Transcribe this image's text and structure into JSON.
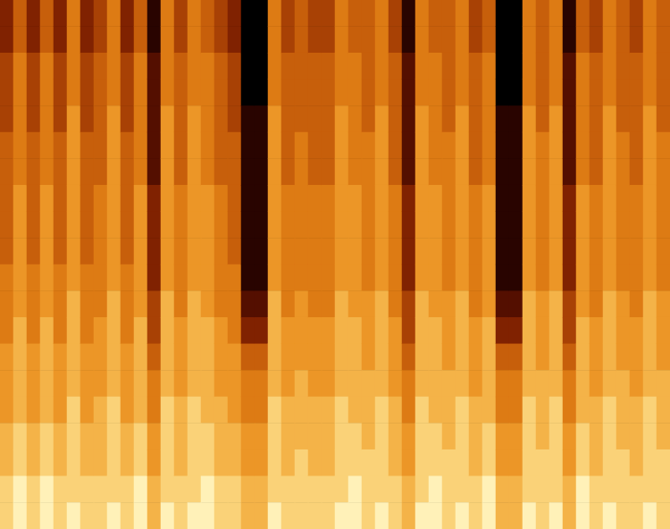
{
  "chart_data": {
    "type": "heatmap",
    "tick_labels": false,
    "grid": false,
    "value_range": [
      0,
      10
    ],
    "cells": [
      [
        3,
        3,
        4,
        4,
        4,
        5,
        5,
        5,
        5,
        5,
        6,
        6,
        6,
        7,
        7,
        7,
        8,
        8,
        9,
        9
      ],
      [
        5,
        5,
        6,
        6,
        6,
        6,
        6,
        7,
        7,
        7,
        7,
        7,
        8,
        8,
        8,
        8,
        9,
        9,
        10,
        10
      ],
      [
        3,
        3,
        4,
        4,
        4,
        5,
        5,
        5,
        5,
        5,
        6,
        6,
        6,
        7,
        7,
        7,
        8,
        8,
        9,
        9
      ],
      [
        5,
        5,
        6,
        6,
        6,
        6,
        6,
        7,
        7,
        7,
        7,
        7,
        8,
        8,
        8,
        8,
        9,
        9,
        10,
        10
      ],
      [
        3,
        3,
        4,
        4,
        4,
        5,
        5,
        5,
        5,
        5,
        6,
        6,
        6,
        7,
        7,
        7,
        8,
        8,
        9,
        9
      ],
      [
        6,
        6,
        6,
        6,
        7,
        7,
        7,
        7,
        7,
        7,
        7,
        8,
        8,
        8,
        8,
        9,
        9,
        9,
        9,
        10
      ],
      [
        3,
        3,
        4,
        4,
        4,
        5,
        5,
        5,
        5,
        5,
        6,
        6,
        6,
        7,
        7,
        7,
        8,
        8,
        9,
        9
      ],
      [
        4,
        4,
        5,
        5,
        5,
        5,
        5,
        6,
        6,
        6,
        6,
        6,
        7,
        7,
        7,
        8,
        8,
        8,
        9,
        9
      ],
      [
        6,
        6,
        6,
        6,
        7,
        7,
        7,
        7,
        7,
        7,
        7,
        8,
        8,
        8,
        8,
        9,
        9,
        9,
        9,
        10
      ],
      [
        3,
        3,
        4,
        4,
        4,
        5,
        5,
        5,
        5,
        5,
        6,
        6,
        6,
        7,
        7,
        7,
        8,
        8,
        9,
        9
      ],
      [
        5,
        5,
        6,
        6,
        6,
        6,
        6,
        7,
        7,
        7,
        7,
        7,
        8,
        8,
        8,
        8,
        9,
        9,
        10,
        10
      ],
      [
        1,
        1,
        2,
        2,
        2,
        2,
        2,
        3,
        3,
        3,
        3,
        4,
        4,
        5,
        6,
        6,
        7,
        7,
        8,
        8
      ],
      [
        6,
        6,
        6,
        6,
        7,
        7,
        7,
        7,
        7,
        7,
        7,
        8,
        8,
        8,
        8,
        9,
        9,
        9,
        9,
        10
      ],
      [
        4,
        4,
        5,
        5,
        5,
        5,
        5,
        6,
        6,
        6,
        6,
        6,
        7,
        7,
        7,
        8,
        8,
        8,
        9,
        9
      ],
      [
        6,
        6,
        6,
        6,
        7,
        7,
        7,
        7,
        7,
        7,
        7,
        8,
        8,
        8,
        8,
        9,
        9,
        9,
        9,
        10
      ],
      [
        5,
        5,
        6,
        6,
        6,
        6,
        6,
        7,
        7,
        7,
        7,
        7,
        8,
        8,
        8,
        8,
        9,
        9,
        10,
        10
      ],
      [
        4,
        4,
        5,
        5,
        5,
        5,
        5,
        6,
        6,
        6,
        6,
        6,
        7,
        7,
        7,
        8,
        8,
        8,
        9,
        9
      ],
      [
        3,
        3,
        4,
        4,
        4,
        5,
        5,
        5,
        5,
        5,
        6,
        6,
        6,
        7,
        7,
        7,
        8,
        8,
        9,
        9
      ],
      [
        0,
        0,
        0,
        0,
        1,
        1,
        1,
        1,
        1,
        1,
        1,
        2,
        3,
        5,
        6,
        6,
        7,
        7,
        8,
        8
      ],
      [
        0,
        0,
        0,
        0,
        1,
        1,
        1,
        1,
        1,
        1,
        1,
        2,
        3,
        5,
        6,
        6,
        7,
        7,
        8,
        8
      ],
      [
        6,
        6,
        6,
        6,
        7,
        7,
        7,
        7,
        7,
        7,
        7,
        8,
        8,
        8,
        8,
        9,
        9,
        9,
        9,
        10
      ],
      [
        4,
        4,
        5,
        5,
        5,
        5,
        5,
        6,
        6,
        6,
        6,
        6,
        7,
        7,
        7,
        8,
        8,
        8,
        9,
        9
      ],
      [
        5,
        5,
        5,
        5,
        5,
        6,
        6,
        6,
        6,
        6,
        6,
        7,
        7,
        7,
        8,
        8,
        8,
        9,
        9,
        9
      ],
      [
        4,
        4,
        5,
        5,
        5,
        5,
        5,
        6,
        6,
        6,
        6,
        6,
        7,
        7,
        7,
        8,
        8,
        8,
        9,
        9
      ],
      [
        4,
        4,
        5,
        5,
        5,
        5,
        5,
        6,
        6,
        6,
        6,
        6,
        7,
        7,
        7,
        8,
        8,
        8,
        9,
        9
      ],
      [
        6,
        6,
        6,
        6,
        7,
        7,
        7,
        7,
        7,
        7,
        7,
        8,
        8,
        8,
        8,
        9,
        9,
        9,
        9,
        10
      ],
      [
        5,
        5,
        6,
        6,
        6,
        6,
        6,
        7,
        7,
        7,
        7,
        7,
        8,
        8,
        8,
        8,
        9,
        9,
        10,
        10
      ],
      [
        5,
        5,
        5,
        5,
        5,
        6,
        6,
        6,
        6,
        6,
        6,
        7,
        7,
        7,
        8,
        8,
        8,
        9,
        9,
        9
      ],
      [
        6,
        6,
        6,
        6,
        7,
        7,
        7,
        7,
        7,
        7,
        7,
        8,
        8,
        8,
        8,
        9,
        9,
        9,
        9,
        10
      ],
      [
        4,
        4,
        5,
        5,
        5,
        5,
        5,
        6,
        6,
        6,
        6,
        6,
        7,
        7,
        7,
        8,
        8,
        8,
        9,
        9
      ],
      [
        1,
        1,
        2,
        2,
        2,
        2,
        2,
        3,
        3,
        3,
        3,
        4,
        4,
        5,
        6,
        6,
        7,
        7,
        8,
        8
      ],
      [
        6,
        6,
        6,
        6,
        7,
        7,
        7,
        7,
        7,
        7,
        7,
        8,
        8,
        8,
        8,
        9,
        9,
        9,
        9,
        10
      ],
      [
        5,
        5,
        6,
        6,
        6,
        6,
        6,
        7,
        7,
        7,
        7,
        7,
        8,
        8,
        8,
        8,
        9,
        9,
        10,
        10
      ],
      [
        5,
        5,
        5,
        5,
        5,
        6,
        6,
        6,
        6,
        6,
        6,
        7,
        7,
        7,
        8,
        8,
        8,
        9,
        9,
        9
      ],
      [
        6,
        6,
        6,
        6,
        7,
        7,
        7,
        7,
        7,
        7,
        7,
        8,
        8,
        8,
        8,
        9,
        9,
        9,
        9,
        10
      ],
      [
        4,
        4,
        5,
        5,
        5,
        5,
        5,
        6,
        6,
        6,
        6,
        6,
        7,
        7,
        7,
        8,
        8,
        8,
        9,
        9
      ],
      [
        5,
        5,
        6,
        6,
        6,
        6,
        6,
        7,
        7,
        7,
        7,
        7,
        8,
        8,
        8,
        8,
        9,
        9,
        10,
        10
      ],
      [
        0,
        0,
        0,
        0,
        1,
        1,
        1,
        1,
        1,
        1,
        1,
        2,
        3,
        5,
        6,
        6,
        7,
        7,
        8,
        8
      ],
      [
        0,
        0,
        0,
        0,
        1,
        1,
        1,
        1,
        1,
        1,
        1,
        2,
        3,
        5,
        6,
        6,
        7,
        7,
        8,
        8
      ],
      [
        6,
        6,
        6,
        6,
        7,
        7,
        7,
        7,
        7,
        7,
        7,
        8,
        8,
        8,
        8,
        9,
        9,
        9,
        9,
        10
      ],
      [
        5,
        5,
        5,
        5,
        5,
        6,
        6,
        6,
        6,
        6,
        6,
        7,
        7,
        7,
        8,
        8,
        8,
        9,
        9,
        9
      ],
      [
        6,
        6,
        6,
        6,
        7,
        7,
        7,
        7,
        7,
        7,
        7,
        8,
        8,
        8,
        8,
        9,
        9,
        9,
        9,
        10
      ],
      [
        1,
        1,
        2,
        2,
        2,
        2,
        2,
        3,
        3,
        3,
        3,
        4,
        4,
        5,
        6,
        6,
        7,
        7,
        8,
        8
      ],
      [
        5,
        5,
        6,
        6,
        6,
        6,
        6,
        7,
        7,
        7,
        7,
        7,
        8,
        8,
        8,
        8,
        9,
        9,
        10,
        10
      ],
      [
        4,
        4,
        5,
        5,
        5,
        5,
        5,
        6,
        6,
        6,
        6,
        6,
        7,
        7,
        7,
        8,
        8,
        8,
        9,
        9
      ],
      [
        6,
        6,
        6,
        6,
        7,
        7,
        7,
        7,
        7,
        7,
        7,
        8,
        8,
        8,
        8,
        9,
        9,
        9,
        9,
        10
      ],
      [
        5,
        5,
        5,
        5,
        5,
        6,
        6,
        6,
        6,
        6,
        6,
        7,
        7,
        7,
        8,
        8,
        8,
        9,
        9,
        9
      ],
      [
        4,
        4,
        5,
        5,
        5,
        5,
        5,
        6,
        6,
        6,
        6,
        6,
        7,
        7,
        7,
        8,
        8,
        8,
        9,
        9
      ],
      [
        6,
        6,
        6,
        6,
        7,
        7,
        7,
        7,
        7,
        7,
        7,
        8,
        8,
        8,
        8,
        9,
        9,
        9,
        9,
        10
      ],
      [
        5,
        5,
        5,
        5,
        5,
        6,
        6,
        6,
        6,
        6,
        6,
        7,
        7,
        7,
        8,
        8,
        8,
        9,
        9,
        9
      ]
    ]
  }
}
